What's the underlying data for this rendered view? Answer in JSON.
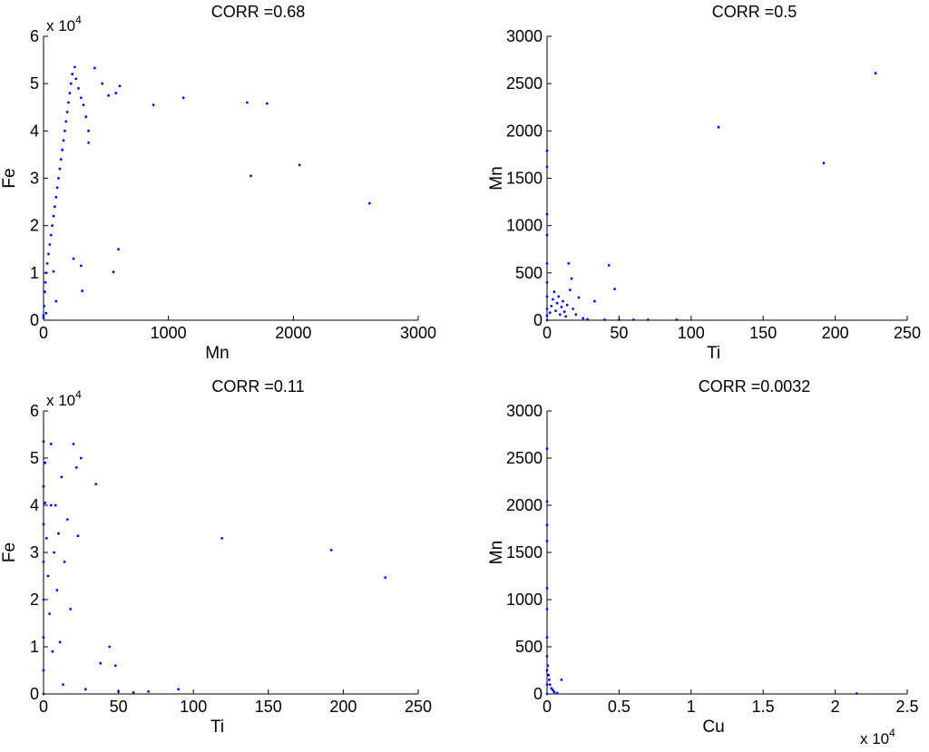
{
  "figure": {
    "background": "#ffffff",
    "marker_color": "#0000ff"
  },
  "chart_data": [
    {
      "type": "scatter",
      "title": "CORR =0.68",
      "xlabel": "Mn",
      "ylabel": "Fe",
      "xlim": [
        0,
        3000
      ],
      "ylim": [
        0,
        60000
      ],
      "x_ticks": [
        "0",
        "1000",
        "2000",
        "3000"
      ],
      "y_ticks": [
        "0",
        "1",
        "2",
        "3",
        "4",
        "5",
        "6"
      ],
      "y_multiplier": {
        "base": "x 10",
        "exponent": "4"
      },
      "x_multiplier": null,
      "points": [
        [
          0,
          500
        ],
        [
          5,
          3000
        ],
        [
          10,
          6000
        ],
        [
          15,
          8000
        ],
        [
          20,
          10000
        ],
        [
          30,
          12000
        ],
        [
          40,
          14000
        ],
        [
          50,
          16000
        ],
        [
          60,
          18000
        ],
        [
          70,
          20000
        ],
        [
          80,
          22000
        ],
        [
          90,
          24000
        ],
        [
          100,
          26000
        ],
        [
          110,
          28000
        ],
        [
          120,
          30000
        ],
        [
          130,
          32000
        ],
        [
          140,
          34000
        ],
        [
          150,
          36000
        ],
        [
          160,
          38000
        ],
        [
          170,
          40000
        ],
        [
          180,
          42000
        ],
        [
          190,
          44000
        ],
        [
          200,
          46000
        ],
        [
          210,
          48000
        ],
        [
          220,
          50000
        ],
        [
          230,
          52000
        ],
        [
          250,
          53500
        ],
        [
          260,
          51000
        ],
        [
          280,
          49000
        ],
        [
          300,
          47000
        ],
        [
          320,
          45500
        ],
        [
          340,
          43000
        ],
        [
          360,
          40000
        ],
        [
          360,
          37500
        ],
        [
          410,
          53300
        ],
        [
          470,
          50000
        ],
        [
          520,
          47500
        ],
        [
          580,
          48000
        ],
        [
          610,
          49500
        ],
        [
          880,
          45500
        ],
        [
          1120,
          47000
        ],
        [
          1630,
          46000
        ],
        [
          1790,
          45800
        ],
        [
          1660,
          30500
        ],
        [
          2050,
          32800
        ],
        [
          2610,
          24700
        ],
        [
          600,
          15000
        ],
        [
          560,
          10200
        ],
        [
          240,
          13000
        ],
        [
          300,
          11500
        ],
        [
          310,
          6200
        ],
        [
          80,
          10300
        ],
        [
          100,
          4000
        ],
        [
          20,
          1500
        ],
        [
          0,
          1000
        ]
      ]
    },
    {
      "type": "scatter",
      "title": "CORR =0.5",
      "xlabel": "Ti",
      "ylabel": "Mn",
      "xlim": [
        0,
        250
      ],
      "ylim": [
        0,
        3000
      ],
      "x_ticks": [
        "0",
        "50",
        "100",
        "150",
        "200",
        "250"
      ],
      "y_ticks": [
        "0",
        "500",
        "1000",
        "1500",
        "2000",
        "2500",
        "3000"
      ],
      "y_multiplier": null,
      "x_multiplier": null,
      "points": [
        [
          0,
          0
        ],
        [
          0,
          50
        ],
        [
          0,
          120
        ],
        [
          0,
          250
        ],
        [
          0,
          400
        ],
        [
          0,
          600
        ],
        [
          0,
          900
        ],
        [
          0,
          1120
        ],
        [
          0,
          1620
        ],
        [
          0,
          1790
        ],
        [
          2,
          80
        ],
        [
          3,
          150
        ],
        [
          4,
          220
        ],
        [
          5,
          300
        ],
        [
          6,
          100
        ],
        [
          7,
          180
        ],
        [
          8,
          250
        ],
        [
          9,
          60
        ],
        [
          10,
          140
        ],
        [
          11,
          200
        ],
        [
          12,
          90
        ],
        [
          13,
          40
        ],
        [
          14,
          160
        ],
        [
          15,
          600
        ],
        [
          16,
          320
        ],
        [
          17,
          440
        ],
        [
          18,
          120
        ],
        [
          20,
          60
        ],
        [
          22,
          240
        ],
        [
          25,
          20
        ],
        [
          28,
          10
        ],
        [
          33,
          200
        ],
        [
          40,
          5
        ],
        [
          43,
          580
        ],
        [
          47,
          330
        ],
        [
          50,
          5
        ],
        [
          60,
          5
        ],
        [
          70,
          5
        ],
        [
          90,
          5
        ],
        [
          119,
          2040
        ],
        [
          192,
          1660
        ],
        [
          228,
          2610
        ]
      ]
    },
    {
      "type": "scatter",
      "title": "CORR =0.11",
      "xlabel": "Ti",
      "ylabel": "Fe",
      "xlim": [
        0,
        250
      ],
      "ylim": [
        0,
        60000
      ],
      "x_ticks": [
        "0",
        "50",
        "100",
        "150",
        "200",
        "250"
      ],
      "y_ticks": [
        "0",
        "1",
        "2",
        "3",
        "4",
        "5",
        "6"
      ],
      "y_multiplier": {
        "base": "x 10",
        "exponent": "4"
      },
      "x_multiplier": null,
      "points": [
        [
          0,
          0
        ],
        [
          0,
          5000
        ],
        [
          0,
          12000
        ],
        [
          0,
          20000
        ],
        [
          0,
          28000
        ],
        [
          0,
          36000
        ],
        [
          0,
          44000
        ],
        [
          0,
          53500
        ],
        [
          1,
          49000
        ],
        [
          1,
          40500
        ],
        [
          2,
          33000
        ],
        [
          3,
          25000
        ],
        [
          4,
          17000
        ],
        [
          5,
          53000
        ],
        [
          5,
          40000
        ],
        [
          6,
          9000
        ],
        [
          7,
          30000
        ],
        [
          8,
          40000
        ],
        [
          9,
          22000
        ],
        [
          10,
          34000
        ],
        [
          11,
          11000
        ],
        [
          12,
          46000
        ],
        [
          13,
          2000
        ],
        [
          14,
          28000
        ],
        [
          16,
          37000
        ],
        [
          18,
          18000
        ],
        [
          20,
          53000
        ],
        [
          22,
          48000
        ],
        [
          23,
          33500
        ],
        [
          25,
          50000
        ],
        [
          28,
          1000
        ],
        [
          35,
          44500
        ],
        [
          38,
          6500
        ],
        [
          44,
          10000
        ],
        [
          48,
          6000
        ],
        [
          50,
          500
        ],
        [
          60,
          300
        ],
        [
          70,
          500
        ],
        [
          90,
          1000
        ],
        [
          119,
          33000
        ],
        [
          192,
          30500
        ],
        [
          228,
          24700
        ]
      ]
    },
    {
      "type": "scatter",
      "title": "CORR =0.0032",
      "xlabel": "Cu",
      "ylabel": "Mn",
      "xlim": [
        0,
        25000
      ],
      "ylim": [
        0,
        3000
      ],
      "x_ticks": [
        "0",
        "0.5",
        "1",
        "1.5",
        "2",
        "2.5"
      ],
      "y_ticks": [
        "0",
        "500",
        "1000",
        "1500",
        "2000",
        "2500",
        "3000"
      ],
      "y_multiplier": null,
      "x_multiplier": {
        "base": "x 10",
        "exponent": "4"
      },
      "points": [
        [
          0,
          0
        ],
        [
          0,
          100
        ],
        [
          0,
          250
        ],
        [
          0,
          400
        ],
        [
          0,
          600
        ],
        [
          0,
          900
        ],
        [
          0,
          1120
        ],
        [
          0,
          1620
        ],
        [
          0,
          1790
        ],
        [
          0,
          2040
        ],
        [
          0,
          2600
        ],
        [
          50,
          300
        ],
        [
          100,
          200
        ],
        [
          150,
          150
        ],
        [
          200,
          100
        ],
        [
          300,
          60
        ],
        [
          400,
          40
        ],
        [
          500,
          20
        ],
        [
          700,
          10
        ],
        [
          1000,
          150
        ],
        [
          21500,
          5
        ]
      ]
    }
  ]
}
